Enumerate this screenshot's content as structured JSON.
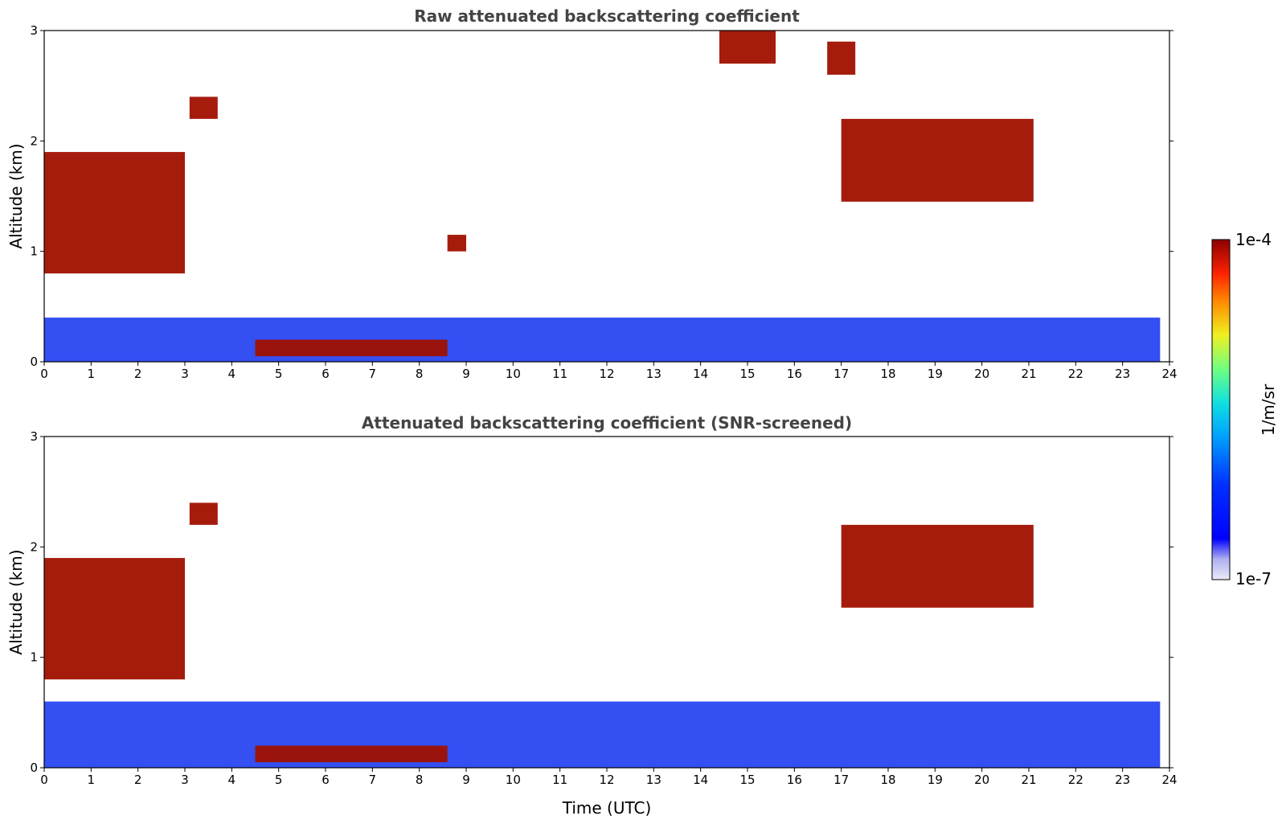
{
  "chart_data": [
    {
      "type": "heatmap",
      "title": "Raw attenuated backscattering coefficient",
      "xlabel": "",
      "ylabel": "Altitude (km)",
      "xlim": [
        0,
        24
      ],
      "ylim": [
        0,
        3
      ],
      "xticks": [
        "0",
        "1",
        "2",
        "3",
        "4",
        "5",
        "6",
        "7",
        "8",
        "9",
        "10",
        "11",
        "12",
        "13",
        "14",
        "15",
        "16",
        "17",
        "18",
        "19",
        "20",
        "21",
        "22",
        "23",
        "24"
      ],
      "yticks": [
        "0",
        "1",
        "2",
        "3"
      ],
      "data_extent_x": [
        0,
        23.8
      ],
      "features": [
        {
          "name": "boundary layer aerosol",
          "x": [
            0,
            23.8
          ],
          "y": [
            0,
            0.4
          ],
          "level": "low"
        },
        {
          "name": "low cloud",
          "x": [
            4.5,
            8.6
          ],
          "y": [
            0.05,
            0.2
          ],
          "level": "high"
        },
        {
          "name": "cloud base",
          "x": [
            0,
            3.0
          ],
          "y": [
            0.8,
            1.9
          ],
          "level": "high"
        },
        {
          "name": "cloud",
          "x": [
            3.1,
            3.7
          ],
          "y": [
            2.2,
            2.4
          ],
          "level": "high"
        },
        {
          "name": "cloud",
          "x": [
            8.6,
            9.0
          ],
          "y": [
            1.0,
            1.15
          ],
          "level": "high"
        },
        {
          "name": "cloud",
          "x": [
            14.4,
            15.6
          ],
          "y": [
            2.7,
            3.0
          ],
          "level": "high"
        },
        {
          "name": "cloud",
          "x": [
            16.7,
            17.3
          ],
          "y": [
            2.6,
            2.9
          ],
          "level": "high"
        },
        {
          "name": "cloud layer",
          "x": [
            17.0,
            21.1
          ],
          "y": [
            1.45,
            2.2
          ],
          "level": "high"
        }
      ]
    },
    {
      "type": "heatmap",
      "title": "Attenuated backscattering coefficient (SNR-screened)",
      "xlabel": "Time (UTC)",
      "ylabel": "Altitude (km)",
      "xlim": [
        0,
        24
      ],
      "ylim": [
        0,
        3
      ],
      "xticks": [
        "0",
        "1",
        "2",
        "3",
        "4",
        "5",
        "6",
        "7",
        "8",
        "9",
        "10",
        "11",
        "12",
        "13",
        "14",
        "15",
        "16",
        "17",
        "18",
        "19",
        "20",
        "21",
        "22",
        "23",
        "24"
      ],
      "yticks": [
        "0",
        "1",
        "2",
        "3"
      ],
      "data_extent_x": [
        0,
        23.8
      ],
      "features": [
        {
          "name": "boundary layer aerosol",
          "x": [
            0,
            23.8
          ],
          "y": [
            0,
            0.6
          ],
          "level": "low"
        },
        {
          "name": "low cloud",
          "x": [
            4.5,
            8.6
          ],
          "y": [
            0.05,
            0.2
          ],
          "level": "high"
        },
        {
          "name": "cloud base",
          "x": [
            0,
            3.0
          ],
          "y": [
            0.8,
            1.9
          ],
          "level": "high"
        },
        {
          "name": "cloud",
          "x": [
            3.1,
            3.7
          ],
          "y": [
            2.2,
            2.4
          ],
          "level": "high"
        },
        {
          "name": "cloud layer",
          "x": [
            17.0,
            21.1
          ],
          "y": [
            1.45,
            2.2
          ],
          "level": "high"
        }
      ],
      "screened_out_color": "#ffffff"
    }
  ],
  "colorbar": {
    "label": "1/m/sr",
    "max_label": "1e-4",
    "min_label": "1e-7",
    "scale": "log",
    "colormap": "jet"
  }
}
